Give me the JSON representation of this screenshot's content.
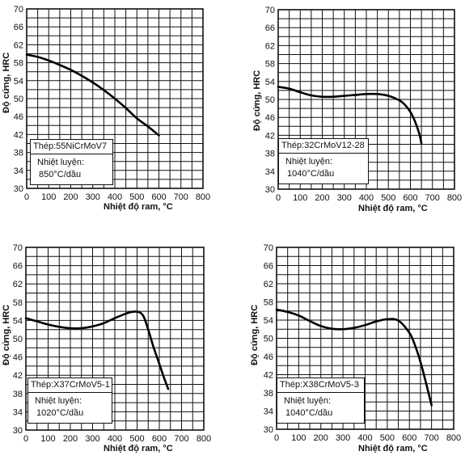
{
  "chart_data": [
    {
      "type": "line",
      "xlabel": "Nhiệt độ ram, °C",
      "ylabel": "Độ cứng, HRC",
      "xlim": [
        0,
        800
      ],
      "ylim": [
        30,
        70
      ],
      "xticks": [
        "0",
        "100",
        "200",
        "300",
        "400",
        "500",
        "600",
        "700",
        "800"
      ],
      "yticks": [
        "30",
        "34",
        "38",
        "42",
        "46",
        "50",
        "54",
        "58",
        "62",
        "66",
        "70"
      ],
      "grid": true,
      "steel_label": "Thép:55NiCrMoV7",
      "treatment_label": "Nhiệt luyện:",
      "treatment_value": "850°C/dầu",
      "series": [
        {
          "x": [
            0,
            50,
            100,
            150,
            200,
            250,
            300,
            350,
            400,
            450,
            500,
            550,
            600
          ],
          "y": [
            59.8,
            59.3,
            58.5,
            57.5,
            56.4,
            55.1,
            53.6,
            51.9,
            50.0,
            47.9,
            45.6,
            43.8,
            41.8
          ]
        }
      ]
    },
    {
      "type": "line",
      "xlabel": "Nhiệt độ ram, °C",
      "ylabel": "Độ cứng, HRC",
      "xlim": [
        0,
        800
      ],
      "ylim": [
        30,
        70
      ],
      "xticks": [
        "0",
        "100",
        "200",
        "300",
        "400",
        "500",
        "600",
        "700",
        "800"
      ],
      "yticks": [
        "30",
        "34",
        "38",
        "42",
        "46",
        "50",
        "54",
        "58",
        "62",
        "66",
        "70"
      ],
      "grid": true,
      "steel_label": "Thép:32CrMoV12-28",
      "treatment_label": "Nhiệt luyện:",
      "treatment_value": "1040°C/dầu",
      "series": [
        {
          "x": [
            0,
            50,
            100,
            150,
            200,
            250,
            300,
            350,
            400,
            450,
            500,
            550,
            575,
            600,
            620,
            640,
            650
          ],
          "y": [
            52.8,
            52.4,
            51.6,
            50.9,
            50.6,
            50.6,
            50.8,
            51.0,
            51.2,
            51.2,
            50.8,
            49.8,
            48.8,
            47.2,
            45.2,
            42.4,
            40.2
          ]
        }
      ]
    },
    {
      "type": "line",
      "xlabel": "Nhiệt độ ram, °C",
      "ylabel": "Độ cứng, HRC",
      "xlim": [
        0,
        800
      ],
      "ylim": [
        30,
        70
      ],
      "xticks": [
        "0",
        "100",
        "200",
        "300",
        "400",
        "500",
        "600",
        "700",
        "800"
      ],
      "yticks": [
        "30",
        "34",
        "38",
        "42",
        "46",
        "50",
        "54",
        "58",
        "62",
        "66",
        "70"
      ],
      "grid": true,
      "steel_label": "Thép:X37CrMoV5-1",
      "treatment_label": "Nhiệt luyện:",
      "treatment_value": "1020°C/dầu",
      "series": [
        {
          "x": [
            0,
            50,
            100,
            150,
            200,
            250,
            300,
            350,
            400,
            450,
            480,
            510,
            530,
            550,
            575,
            600,
            620,
            640
          ],
          "y": [
            54.5,
            53.8,
            53.1,
            52.6,
            52.3,
            52.3,
            52.7,
            53.4,
            54.5,
            55.5,
            55.9,
            55.8,
            54.8,
            52.0,
            48.0,
            44.5,
            41.6,
            39.0
          ]
        }
      ]
    },
    {
      "type": "line",
      "xlabel": "Nhiệt độ ram, °C",
      "ylabel": "Độ cứng, HRC",
      "xlim": [
        0,
        800
      ],
      "ylim": [
        30,
        70
      ],
      "xticks": [
        "0",
        "100",
        "200",
        "300",
        "400",
        "500",
        "600",
        "700",
        "800"
      ],
      "yticks": [
        "30",
        "34",
        "38",
        "42",
        "46",
        "50",
        "54",
        "58",
        "62",
        "66",
        "70"
      ],
      "grid": true,
      "steel_label": "Thép:X38CrMoV5-3",
      "treatment_label": "Nhiệt luyện:",
      "treatment_value": "1040°C/dầu",
      "series": [
        {
          "x": [
            0,
            50,
            100,
            150,
            200,
            250,
            300,
            350,
            400,
            450,
            500,
            550,
            600,
            625,
            650,
            675,
            700
          ],
          "y": [
            56.3,
            55.8,
            55.0,
            53.8,
            52.7,
            52.1,
            52.0,
            52.3,
            52.9,
            53.7,
            54.2,
            53.9,
            51.2,
            48.5,
            44.8,
            40.2,
            35.3
          ]
        }
      ]
    }
  ]
}
